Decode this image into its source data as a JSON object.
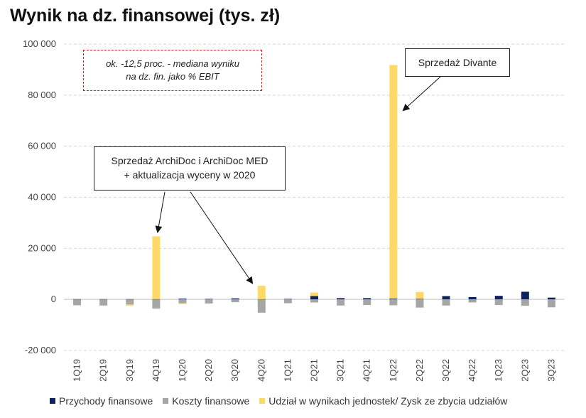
{
  "title": "Wynik na dz. finansowej (tys. zł)",
  "note": {
    "line1": "ok. -12,5 proc. - mediana wyniku",
    "line2": "na dz. fin. jako % EBIT"
  },
  "callouts": [
    {
      "line1": "Sprzedaż ArchiDoc i ArchiDoc MED",
      "line2": "+ aktualizacja wyceny w 2020"
    },
    {
      "line1": "Sprzedaż Divante",
      "line2": ""
    }
  ],
  "colors": {
    "przychody": "#0d2359",
    "koszty": "#a6a6a6",
    "udzial": "#ffd966",
    "grid": "#d9d9d9",
    "note_border": "#e01b1b"
  },
  "chart_data": {
    "type": "bar",
    "stacked": true,
    "title": "Wynik na dz. finansowej (tys. zł)",
    "categories": [
      "1Q19",
      "2Q19",
      "3Q19",
      "4Q19",
      "1Q20",
      "2Q20",
      "3Q20",
      "4Q20",
      "1Q21",
      "2Q21",
      "3Q21",
      "4Q21",
      "1Q22",
      "2Q22",
      "3Q22",
      "4Q22",
      "1Q23",
      "2Q23",
      "3Q23"
    ],
    "ylim": [
      -20000,
      100000
    ],
    "yticks": [
      -20000,
      0,
      20000,
      40000,
      60000,
      80000,
      100000
    ],
    "ytick_labels": [
      "-20 000",
      "0",
      "20 000",
      "40 000",
      "60 000",
      "80 000",
      "100 000"
    ],
    "grid": true,
    "legend_position": "bottom",
    "series": [
      {
        "name": "Przychody finansowe",
        "color": "#0d2359",
        "values": [
          100,
          100,
          100,
          100,
          300,
          200,
          400,
          100,
          200,
          1300,
          500,
          500,
          300,
          200,
          1300,
          900,
          1400,
          3000,
          700
        ]
      },
      {
        "name": "Koszty finansowe",
        "color": "#a6a6a6",
        "values": [
          -2300,
          -2400,
          -2000,
          -3600,
          -1500,
          -1600,
          -1100,
          -5200,
          -1500,
          -1200,
          -2400,
          -2200,
          -2300,
          -3200,
          -2400,
          -1200,
          -2200,
          -2500,
          -3100
        ]
      },
      {
        "name": "Udział w wynikach jednostek/ Zysk ze zbycia udziałów",
        "color": "#ffd966",
        "values": [
          0,
          0,
          -500,
          24600,
          -300,
          0,
          0,
          5200,
          0,
          1400,
          0,
          0,
          91500,
          2700,
          0,
          0,
          0,
          0,
          0
        ]
      }
    ]
  }
}
